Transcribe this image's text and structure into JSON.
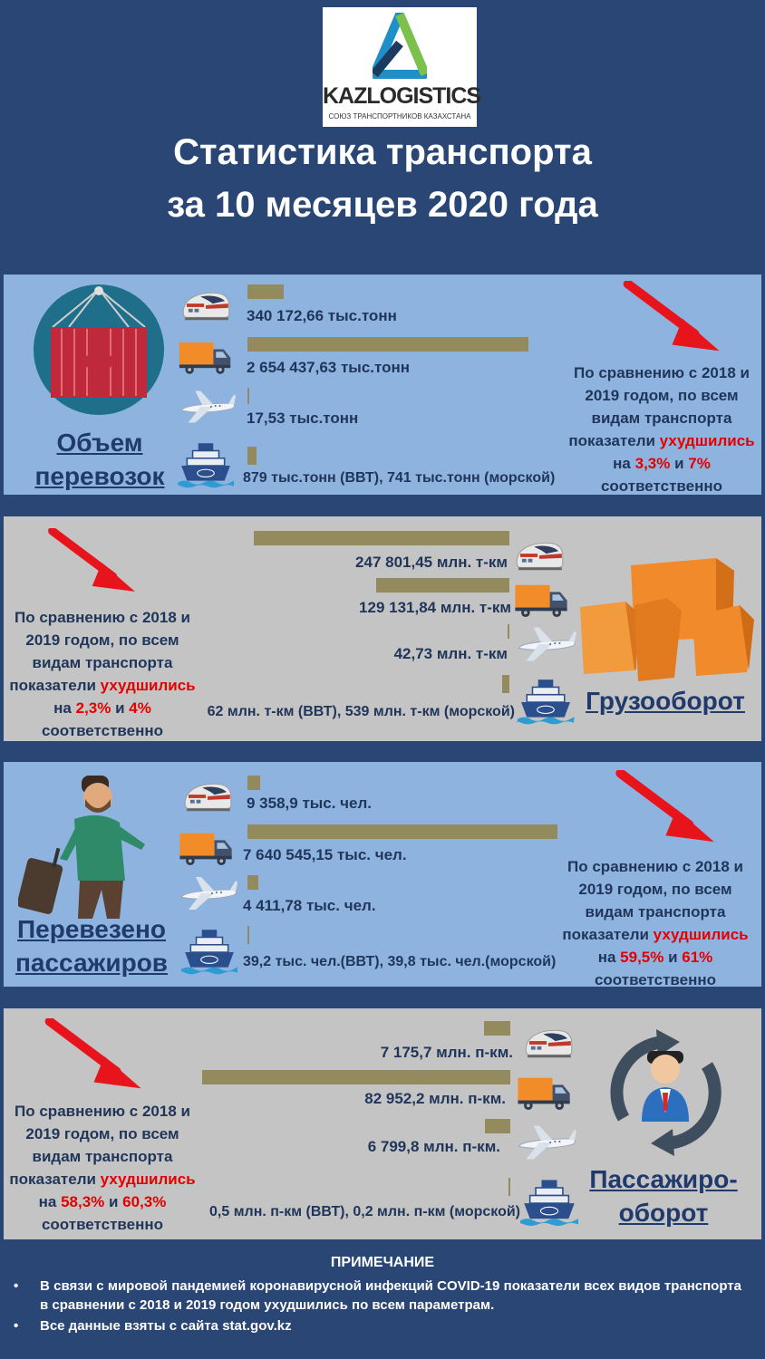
{
  "logo": {
    "name": "KAZLOGISTICS",
    "tagline": "СОЮЗ ТРАНСПОРТНИКОВ КАЗАХСТАНА"
  },
  "title": {
    "line1": "Статистика транспорта",
    "line2": "за 10 месяцев 2020 года"
  },
  "icons": {
    "train": "train-icon",
    "truck": "truck-icon",
    "plane": "plane-icon",
    "ship": "ship-icon"
  },
  "colors": {
    "bar": "#938a5e",
    "accent_red": "#e50000",
    "panel_blue": "#8fb3df",
    "panel_gray": "#c4c4c4",
    "background": "#2a4674"
  },
  "sections": [
    {
      "id": "volume",
      "heading": [
        "Объем",
        "перевозок"
      ],
      "labels": [
        "340 172,66 тыс.тонн",
        "2 654 437,63 тыс.тонн",
        "17,53 тыс.тонн",
        "879 тыс.тонн (ВВТ), 741 тыс.тонн (морской)"
      ],
      "comparison": {
        "pre": [
          "По сравнению с 2018 и",
          "2019 годом, по всем",
          "видам транспорта"
        ],
        "l4a": "показатели ",
        "red_word": "ухудшились",
        "l5a": "на ",
        "pct1": "3,3%",
        "and": " и ",
        "pct2": "7%",
        "last": "соответственно"
      }
    },
    {
      "id": "freight-turnover",
      "heading": [
        "Грузооборот"
      ],
      "labels": [
        "247 801,45 млн. т-км",
        "129 131,84 млн. т-км",
        "42,73 млн. т-км",
        "62 млн. т-км (ВВТ), 539 млн. т-км (морской)"
      ],
      "comparison": {
        "pre": [
          "По сравнению с 2018 и",
          "2019 годом, по всем",
          "видам транспорта"
        ],
        "l4a": "показатели ",
        "red_word": "ухудшились",
        "l5a": "на ",
        "pct1": "2,3%",
        "and": " и ",
        "pct2": "4%",
        "last": "соответственно"
      }
    },
    {
      "id": "passengers",
      "heading": [
        "Перевезено",
        "пассажиров"
      ],
      "labels": [
        "9 358,9 тыс. чел.",
        "7 640 545,15 тыс. чел.",
        "4 411,78 тыс. чел.",
        "39,2 тыс. чел.(ВВТ), 39,8 тыс. чел.(морской)"
      ],
      "comparison": {
        "pre": [
          "По сравнению с 2018 и",
          "2019 годом, по всем",
          "видам транспорта"
        ],
        "l4a": "показатели ",
        "red_word": "ухудшились",
        "l5a": "на ",
        "pct1": "59,5%",
        "and": " и ",
        "pct2": "61%",
        "last": "соответственно"
      }
    },
    {
      "id": "passenger-turnover",
      "heading": [
        "Пассажиро-",
        "оборот"
      ],
      "labels": [
        "7 175,7 млн. п-км.",
        "82 952,2 млн. п-км.",
        "6 799,8 млн. п-км.",
        "0,5 млн. п-км (ВВТ), 0,2 млн. п-км (морской)"
      ],
      "comparison": {
        "pre": [
          "По сравнению с 2018 и",
          "2019 годом, по всем",
          "видам транспорта"
        ],
        "l4a": "показатели ",
        "red_word": "ухудшились",
        "l5a": "на ",
        "pct1": "58,3%",
        "and": " и ",
        "pct2": "60,3%",
        "last": "соответственно"
      }
    }
  ],
  "note": {
    "title": "ПРИМЕЧАНИЕ",
    "items": [
      "В связи с мировой пандемией коронавирусной инфекций COVID-19 показатели всех видов транспорта в сравнении с 2018 и 2019 годом ухудшились по всем параметрам.",
      "Все данные взяты с сайта stat.gov.kz"
    ]
  },
  "chart_data": [
    {
      "type": "bar",
      "categories": [
        "railway",
        "road",
        "air",
        "inland water / sea"
      ],
      "values": [
        340172.66,
        2654437.63,
        17.53,
        1620
      ],
      "unit": "тыс.тонн",
      "title": "Объем перевозок"
    },
    {
      "type": "bar",
      "categories": [
        "railway",
        "road",
        "air",
        "inland water / sea"
      ],
      "values": [
        247801.45,
        129131.84,
        42.73,
        601
      ],
      "unit": "млн. т-км",
      "title": "Грузооборот"
    },
    {
      "type": "bar",
      "categories": [
        "railway",
        "road",
        "air",
        "inland water / sea"
      ],
      "values": [
        9358.9,
        7640545.15,
        4411.78,
        79
      ],
      "unit": "тыс. чел.",
      "title": "Перевезено пассажиров"
    },
    {
      "type": "bar",
      "categories": [
        "railway",
        "road",
        "air",
        "inland water / sea"
      ],
      "values": [
        7175.7,
        82952.2,
        6799.8,
        0.7
      ],
      "unit": "млн. п-км",
      "title": "Пассажирооборот"
    }
  ]
}
